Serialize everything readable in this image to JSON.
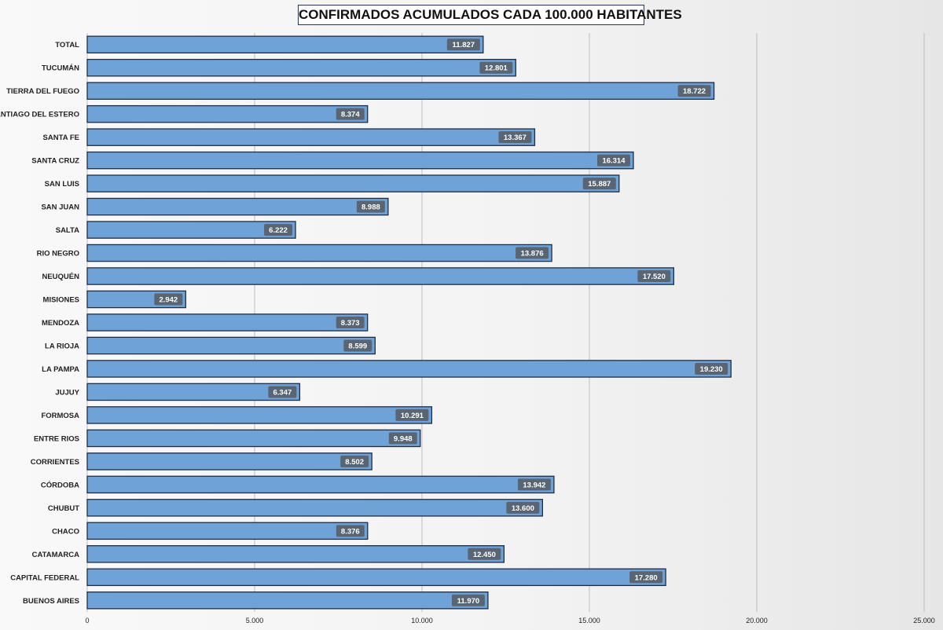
{
  "chart_data": {
    "type": "bar",
    "orientation": "horizontal",
    "title": "CONFIRMADOS ACUMULADOS CADA 100.000 HABITANTES",
    "xlabel": "",
    "ylabel": "",
    "xlim": [
      0,
      25000
    ],
    "x_ticks": [
      0,
      5000,
      10000,
      15000,
      20000,
      25000
    ],
    "x_tick_labels": [
      "0",
      "5.000",
      "10.000",
      "15.000",
      "20.000",
      "25.000"
    ],
    "grid": true,
    "legend": "none",
    "categories": [
      "TOTAL",
      "TUCUMÁN",
      "TIERRA DEL FUEGO",
      "SANTIAGO DEL ESTERO",
      "SANTA FE",
      "SANTA CRUZ",
      "SAN LUIS",
      "SAN JUAN",
      "SALTA",
      "RIO NEGRO",
      "NEUQUÉN",
      "MISIONES",
      "MENDOZA",
      "LA RIOJA",
      "LA PAMPA",
      "JUJUY",
      "FORMOSA",
      "ENTRE RIOS",
      "CORRIENTES",
      "CÓRDOBA",
      "CHUBUT",
      "CHACO",
      "CATAMARCA",
      "CAPITAL FEDERAL",
      "BUENOS AIRES"
    ],
    "values": [
      11827,
      12801,
      18722,
      8374,
      13367,
      16314,
      15887,
      8988,
      6222,
      13876,
      17520,
      2942,
      8373,
      8599,
      19230,
      6347,
      10291,
      9948,
      8502,
      13942,
      13600,
      8376,
      12450,
      17280,
      11970
    ],
    "value_labels": [
      "11.827",
      "12.801",
      "18.722",
      "8.374",
      "13.367",
      "16.314",
      "15.887",
      "8.988",
      "6.222",
      "13.876",
      "17.520",
      "2.942",
      "8.373",
      "8.599",
      "19.230",
      "6.347",
      "10.291",
      "9.948",
      "8.502",
      "13.942",
      "13.600",
      "8.376",
      "12.450",
      "17.280",
      "11.970"
    ],
    "colors": {
      "bar_fill": "#6fa3d8",
      "bar_border": "#1f2d44",
      "label_bg": "#5a6573",
      "grid": "#bdbdbd"
    }
  }
}
